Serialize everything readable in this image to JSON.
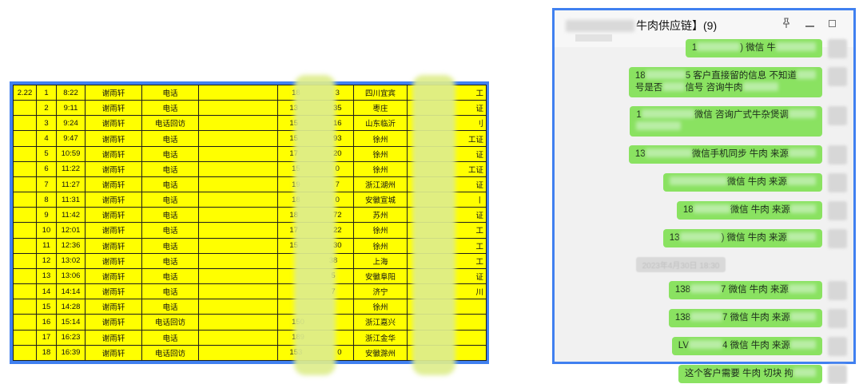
{
  "colors": {
    "accent_blue_border": "#4080f0",
    "sheet_yellow": "#ffff00",
    "bubble_green": "#8ae261",
    "redaction_yellow_green": "#ddeD8c",
    "redaction_gray": "#d9d9d9"
  },
  "table": {
    "rows": [
      {
        "date": "2.22",
        "num": "1",
        "time": "8:22",
        "name": "谢雨轩",
        "method": "电话",
        "note": "",
        "phone_pre": "18",
        "phone_suf": "3",
        "location": "四川宜宾",
        "tag": "工"
      },
      {
        "date": "",
        "num": "2",
        "time": "9:11",
        "name": "谢雨轩",
        "method": "电话",
        "note": "",
        "phone_pre": "13",
        "phone_suf": "35",
        "location": "枣庄",
        "tag": "证"
      },
      {
        "date": "",
        "num": "3",
        "time": "9:24",
        "name": "谢雨轩",
        "method": "电话回访",
        "note": "",
        "phone_pre": "15",
        "phone_suf": "16",
        "location": "山东临沂",
        "tag": "刂"
      },
      {
        "date": "",
        "num": "4",
        "time": "9:47",
        "name": "谢雨轩",
        "method": "电话",
        "note": "",
        "phone_pre": "15",
        "phone_suf": "93",
        "location": "徐州",
        "tag": "工证"
      },
      {
        "date": "",
        "num": "5",
        "time": "10:59",
        "name": "谢雨轩",
        "method": "电话",
        "note": "",
        "phone_pre": "17",
        "phone_suf": "20",
        "location": "徐州",
        "tag": "证"
      },
      {
        "date": "",
        "num": "6",
        "time": "11:22",
        "name": "谢雨轩",
        "method": "电话",
        "note": "",
        "phone_pre": "15",
        "phone_suf": "0",
        "location": "徐州",
        "tag": "工证"
      },
      {
        "date": "",
        "num": "7",
        "time": "11:27",
        "name": "谢雨轩",
        "method": "电话",
        "note": "",
        "phone_pre": "19",
        "phone_suf": "7",
        "location": "浙江湖州",
        "tag": "证"
      },
      {
        "date": "",
        "num": "8",
        "time": "11:31",
        "name": "谢雨轩",
        "method": "电话",
        "note": "",
        "phone_pre": "18",
        "phone_suf": "0",
        "location": "安徽宣城",
        "tag": "丨"
      },
      {
        "date": "",
        "num": "9",
        "time": "11:42",
        "name": "谢雨轩",
        "method": "电话",
        "note": "",
        "phone_pre": "18",
        "phone_suf": "72",
        "location": "苏州",
        "tag": "证"
      },
      {
        "date": "",
        "num": "10",
        "time": "12:01",
        "name": "谢雨轩",
        "method": "电话",
        "note": "",
        "phone_pre": "17",
        "phone_suf": "22",
        "location": "徐州",
        "tag": "工"
      },
      {
        "date": "",
        "num": "11",
        "time": "12:36",
        "name": "谢雨轩",
        "method": "电话",
        "note": "",
        "phone_pre": "15",
        "phone_suf": "30",
        "location": "徐州",
        "tag": "工"
      },
      {
        "date": "",
        "num": "12",
        "time": "13:02",
        "name": "谢雨轩",
        "method": "电话",
        "note": "",
        "phone_pre": "",
        "phone_suf": "38",
        "location": "上海",
        "tag": "工"
      },
      {
        "date": "",
        "num": "13",
        "time": "13:06",
        "name": "谢雨轩",
        "method": "电话",
        "note": "",
        "phone_pre": "",
        "phone_suf": "5",
        "location": "安徽阜阳",
        "tag": "证"
      },
      {
        "date": "",
        "num": "14",
        "time": "14:14",
        "name": "谢雨轩",
        "method": "电话",
        "note": "",
        "phone_pre": "",
        "phone_suf": "7",
        "location": "济宁",
        "tag": "川"
      },
      {
        "date": "",
        "num": "15",
        "time": "14:28",
        "name": "谢雨轩",
        "method": "电话",
        "note": "",
        "phone_pre": "",
        "phone_suf": "",
        "location": "徐州",
        "tag": ""
      },
      {
        "date": "",
        "num": "16",
        "time": "15:14",
        "name": "谢雨轩",
        "method": "电话回访",
        "note": "",
        "phone_pre": "150",
        "phone_suf": "",
        "location": "浙江嘉兴",
        "tag": ""
      },
      {
        "date": "",
        "num": "17",
        "time": "16:23",
        "name": "谢雨轩",
        "method": "电话",
        "note": "",
        "phone_pre": "189",
        "phone_suf": "",
        "location": "浙江金华",
        "tag": ""
      },
      {
        "date": "",
        "num": "18",
        "time": "16:39",
        "name": "谢雨轩",
        "method": "电话回访",
        "note": "",
        "phone_pre": "153",
        "phone_suf": "0",
        "location": "安徽滁州",
        "tag": ""
      }
    ]
  },
  "chat": {
    "title_suffix": "牛肉供应链】(9)",
    "items": [
      {
        "type": "msg",
        "lines": [
          [
            {
              "t": "1"
            },
            {
              "b": 54
            },
            {
              "t": ") 微信 牛"
            },
            {
              "b": 50
            }
          ]
        ]
      },
      {
        "type": "msg",
        "lines": [
          [
            {
              "t": "18"
            },
            {
              "b": 50
            },
            {
              "t": "5 客户直接留的信息 不知道"
            },
            {
              "b": 24
            }
          ],
          [
            {
              "t": "号是否"
            },
            {
              "b": 28
            },
            {
              "t": "信号 咨询牛肉"
            },
            {
              "b": 44
            }
          ]
        ]
      },
      {
        "type": "msg",
        "lines": [
          [
            {
              "t": "1"
            },
            {
              "b": 66
            },
            {
              "t": "微信 咨询广式牛杂煲调"
            },
            {
              "b": 34
            }
          ],
          [
            {
              "b": 56
            }
          ]
        ]
      },
      {
        "type": "msg",
        "lines": [
          [
            {
              "t": "13"
            },
            {
              "b": 58
            },
            {
              "t": "微信手机同步 牛肉 来源"
            },
            {
              "b": 34
            }
          ]
        ]
      },
      {
        "type": "msg",
        "lines": [
          [
            {
              "b": 72
            },
            {
              "t": "微信 牛肉 来源"
            },
            {
              "b": 36
            }
          ]
        ]
      },
      {
        "type": "msg",
        "lines": [
          [
            {
              "t": "18"
            },
            {
              "b": 46
            },
            {
              "t": "微信 牛肉 来源"
            },
            {
              "b": 32
            }
          ]
        ]
      },
      {
        "type": "msg",
        "lines": [
          [
            {
              "t": "13"
            },
            {
              "b": 52
            },
            {
              "t": ") 微信 牛肉 来源"
            },
            {
              "b": 36
            }
          ]
        ]
      },
      {
        "type": "time",
        "text": "2023年4月30日 18:30"
      },
      {
        "type": "msg",
        "lines": [
          [
            {
              "t": "138"
            },
            {
              "b": 38
            },
            {
              "t": "7 微信 牛肉 来源"
            },
            {
              "b": 34
            }
          ]
        ]
      },
      {
        "type": "msg",
        "lines": [
          [
            {
              "t": "138"
            },
            {
              "b": 40
            },
            {
              "t": "7 微信 牛肉 来源"
            },
            {
              "b": 32
            }
          ]
        ]
      },
      {
        "type": "msg",
        "lines": [
          [
            {
              "t": "LV"
            },
            {
              "b": 42
            },
            {
              "t": "4 微信 牛肉 来源"
            },
            {
              "b": 32
            }
          ]
        ]
      },
      {
        "type": "msg",
        "lines": [
          [
            {
              "t": "这个客户需要 牛肉 切块 拘"
            },
            {
              "b": 28
            }
          ]
        ]
      }
    ]
  }
}
